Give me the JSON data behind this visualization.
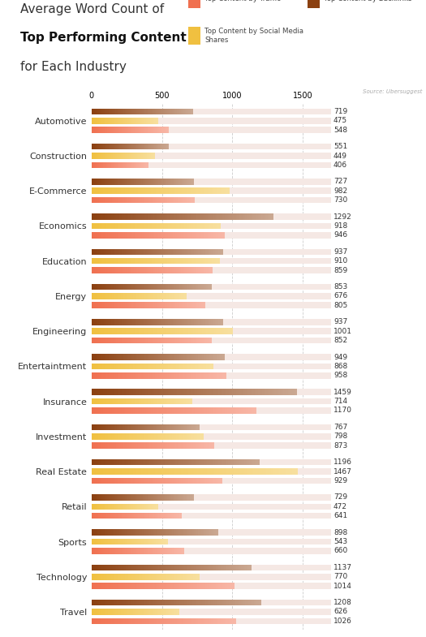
{
  "title_line1": "Average Word Count of",
  "title_line2": "Top Performing Content",
  "title_line3": "for Each Industry",
  "source": "Source: Ubersuggest",
  "sidebar_color": "#E8703A",
  "bg_color": "#FFFFFF",
  "bar_bg_color": "#F5E8E4",
  "categories": [
    "Automotive",
    "Construction",
    "E-Commerce",
    "Economics",
    "Education",
    "Energy",
    "Engineering",
    "Entertaintment",
    "Insurance",
    "Investment",
    "Real Estate",
    "Retail",
    "Sports",
    "Technology",
    "Travel"
  ],
  "traffic": [
    548,
    406,
    730,
    946,
    859,
    805,
    852,
    958,
    1170,
    873,
    929,
    641,
    660,
    1014,
    1026
  ],
  "social": [
    475,
    449,
    982,
    918,
    910,
    676,
    1001,
    868,
    714,
    798,
    1467,
    472,
    543,
    770,
    626
  ],
  "backlinks": [
    719,
    551,
    727,
    1292,
    937,
    853,
    937,
    949,
    1459,
    767,
    1196,
    729,
    898,
    1137,
    1208
  ],
  "traffic_color": "#F07050",
  "social_color": "#F0C040",
  "backlinks_color": "#8B4010",
  "value_fontsize": 6.5,
  "label_fontsize": 8,
  "xmax": 1700
}
